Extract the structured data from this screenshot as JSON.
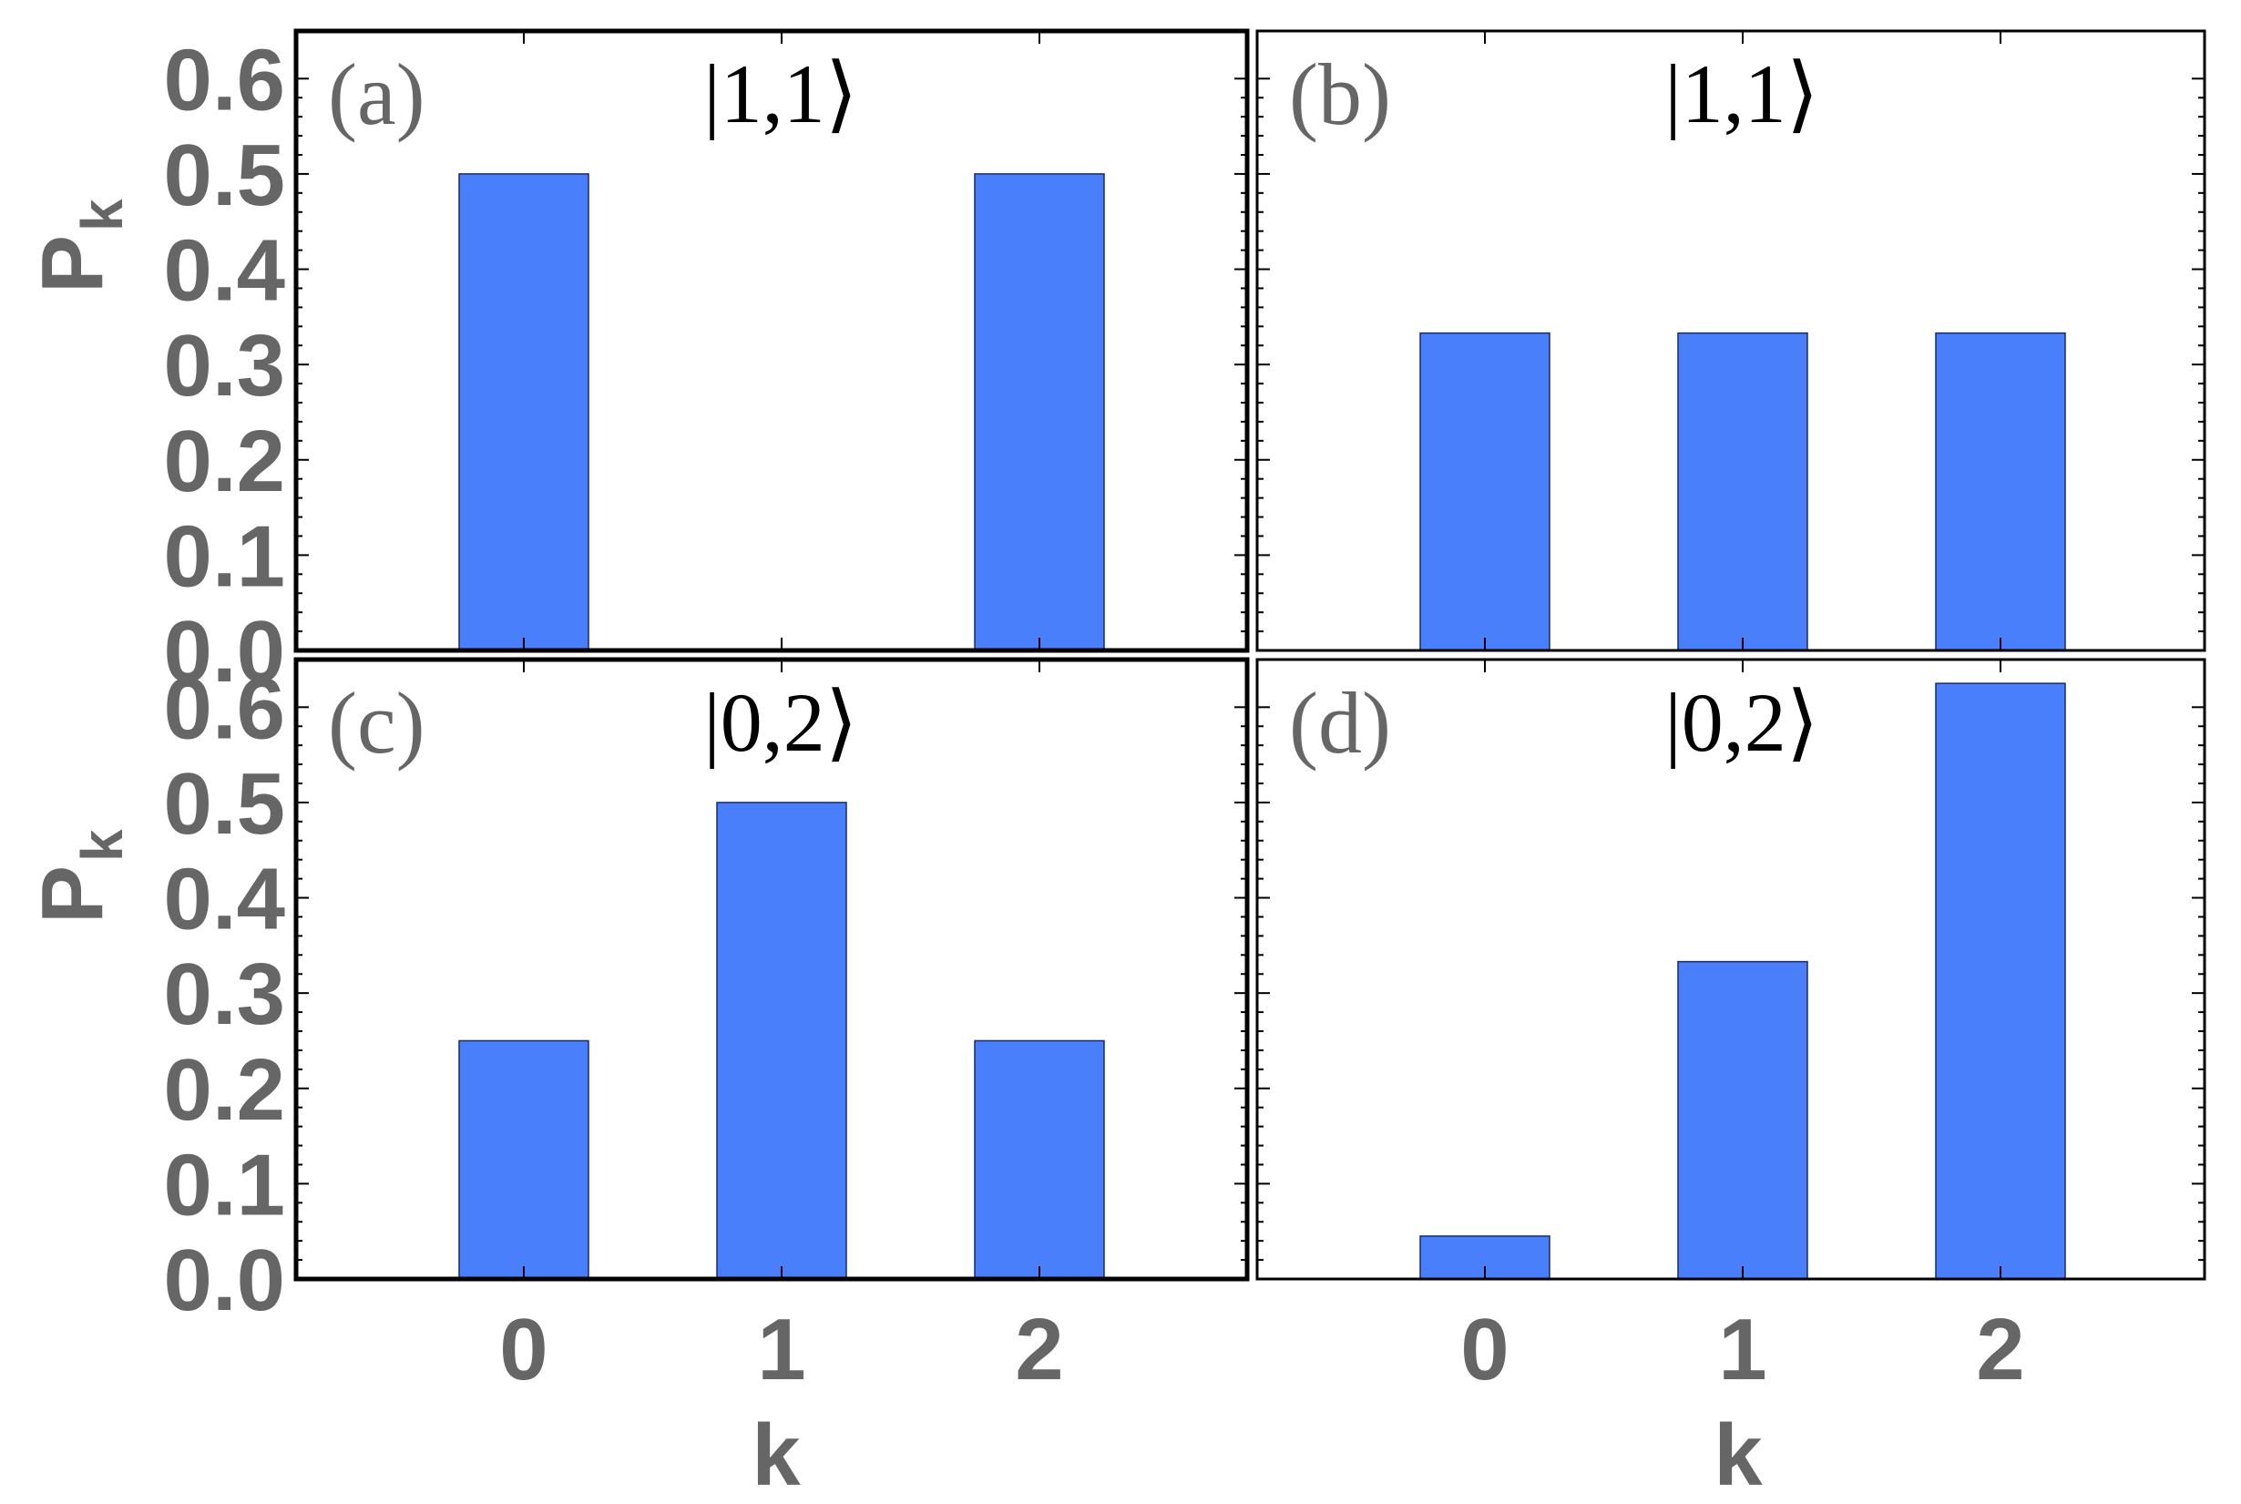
{
  "figure": {
    "ylabel_main": "P",
    "ylabel_sub": "k",
    "xlabel": "k",
    "bar_color": "#4a7ffb",
    "bar_edge_color": "#1a2a66",
    "text_color": "#666666",
    "frame_color": "#000000"
  },
  "chart_data": [
    {
      "type": "bar",
      "panel": "(a)",
      "title": "|1,1⟩",
      "categories": [
        "0",
        "1",
        "2"
      ],
      "values": [
        0.5,
        0.0,
        0.5
      ],
      "ylim": [
        0,
        0.65
      ],
      "yticks": [
        "0.0",
        "0.1",
        "0.2",
        "0.3",
        "0.4",
        "0.5",
        "0.6"
      ],
      "xticks": []
    },
    {
      "type": "bar",
      "panel": "(b)",
      "title": "|1,1⟩",
      "categories": [
        "0",
        "1",
        "2"
      ],
      "values": [
        0.333,
        0.333,
        0.333
      ],
      "ylim": [
        0,
        0.65
      ],
      "yticks": [],
      "xticks": []
    },
    {
      "type": "bar",
      "panel": "(c)",
      "title": "|0,2⟩",
      "categories": [
        "0",
        "1",
        "2"
      ],
      "values": [
        0.25,
        0.5,
        0.25
      ],
      "ylim": [
        0,
        0.65
      ],
      "yticks": [
        "0.0",
        "0.1",
        "0.2",
        "0.3",
        "0.4",
        "0.5",
        "0.6"
      ],
      "xticks": [
        "0",
        "1",
        "2"
      ]
    },
    {
      "type": "bar",
      "panel": "(d)",
      "title": "|0,2⟩",
      "categories": [
        "0",
        "1",
        "2"
      ],
      "values": [
        0.045,
        0.333,
        0.625
      ],
      "ylim": [
        0,
        0.65
      ],
      "yticks": [],
      "xticks": [
        "0",
        "1",
        "2"
      ]
    }
  ]
}
